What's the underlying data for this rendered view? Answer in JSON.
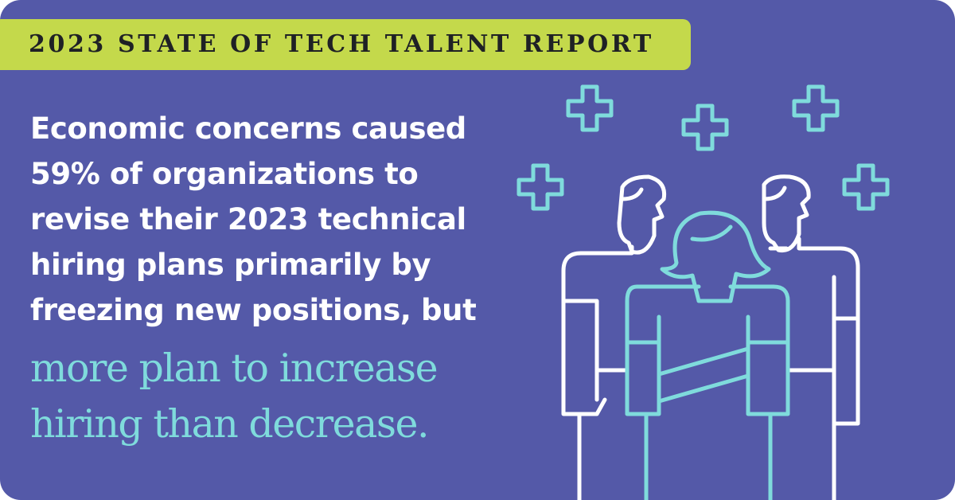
{
  "banner": "2023 STATE OF TECH TALENT REPORT",
  "body_lines": [
    "Economic concerns caused",
    "59% of organizations to",
    "revise their 2023 technical",
    "hiring plans primarily by",
    "freezing new positions, but"
  ],
  "highlight_lines": [
    "more plan to increase",
    "hiring than decrease."
  ]
}
